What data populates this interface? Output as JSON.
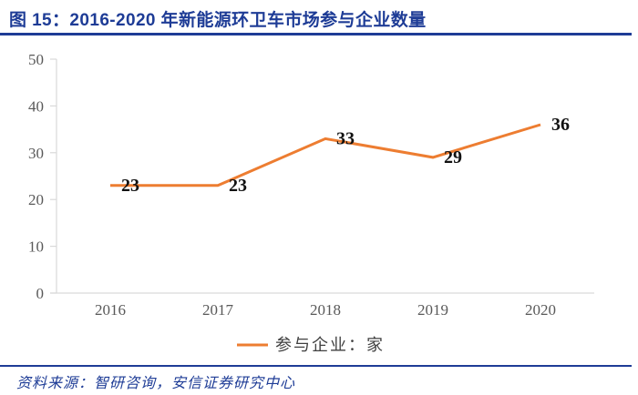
{
  "header": {
    "title": "图 15：2016-2020 年新能源环卫车市场参与企业数量"
  },
  "footer": {
    "source_text": "资料来源：智研咨询，安信证券研究中心"
  },
  "colors": {
    "brand_blue": "#1E3C96",
    "series_orange": "#ED7D31",
    "axis_line": "#D9D9D9",
    "tick_label": "#595959",
    "data_label": "#111111",
    "legend_text": "#404040"
  },
  "chart_data": {
    "type": "line",
    "title": "2016-2020 年新能源环卫车市场参与企业数量",
    "categories": [
      "2016",
      "2017",
      "2018",
      "2019",
      "2020"
    ],
    "series": [
      {
        "name": "参与企业：家",
        "values": [
          23,
          23,
          33,
          29,
          36
        ]
      }
    ],
    "xlabel": "",
    "ylabel": "",
    "ylim": [
      0,
      50
    ],
    "ytick_step": 10,
    "yticks": [
      0,
      10,
      20,
      30,
      40,
      50
    ],
    "grid": false,
    "legend_position": "bottom",
    "legend_label": "参与企业：家",
    "data_labels": [
      23,
      23,
      33,
      29,
      36
    ]
  }
}
